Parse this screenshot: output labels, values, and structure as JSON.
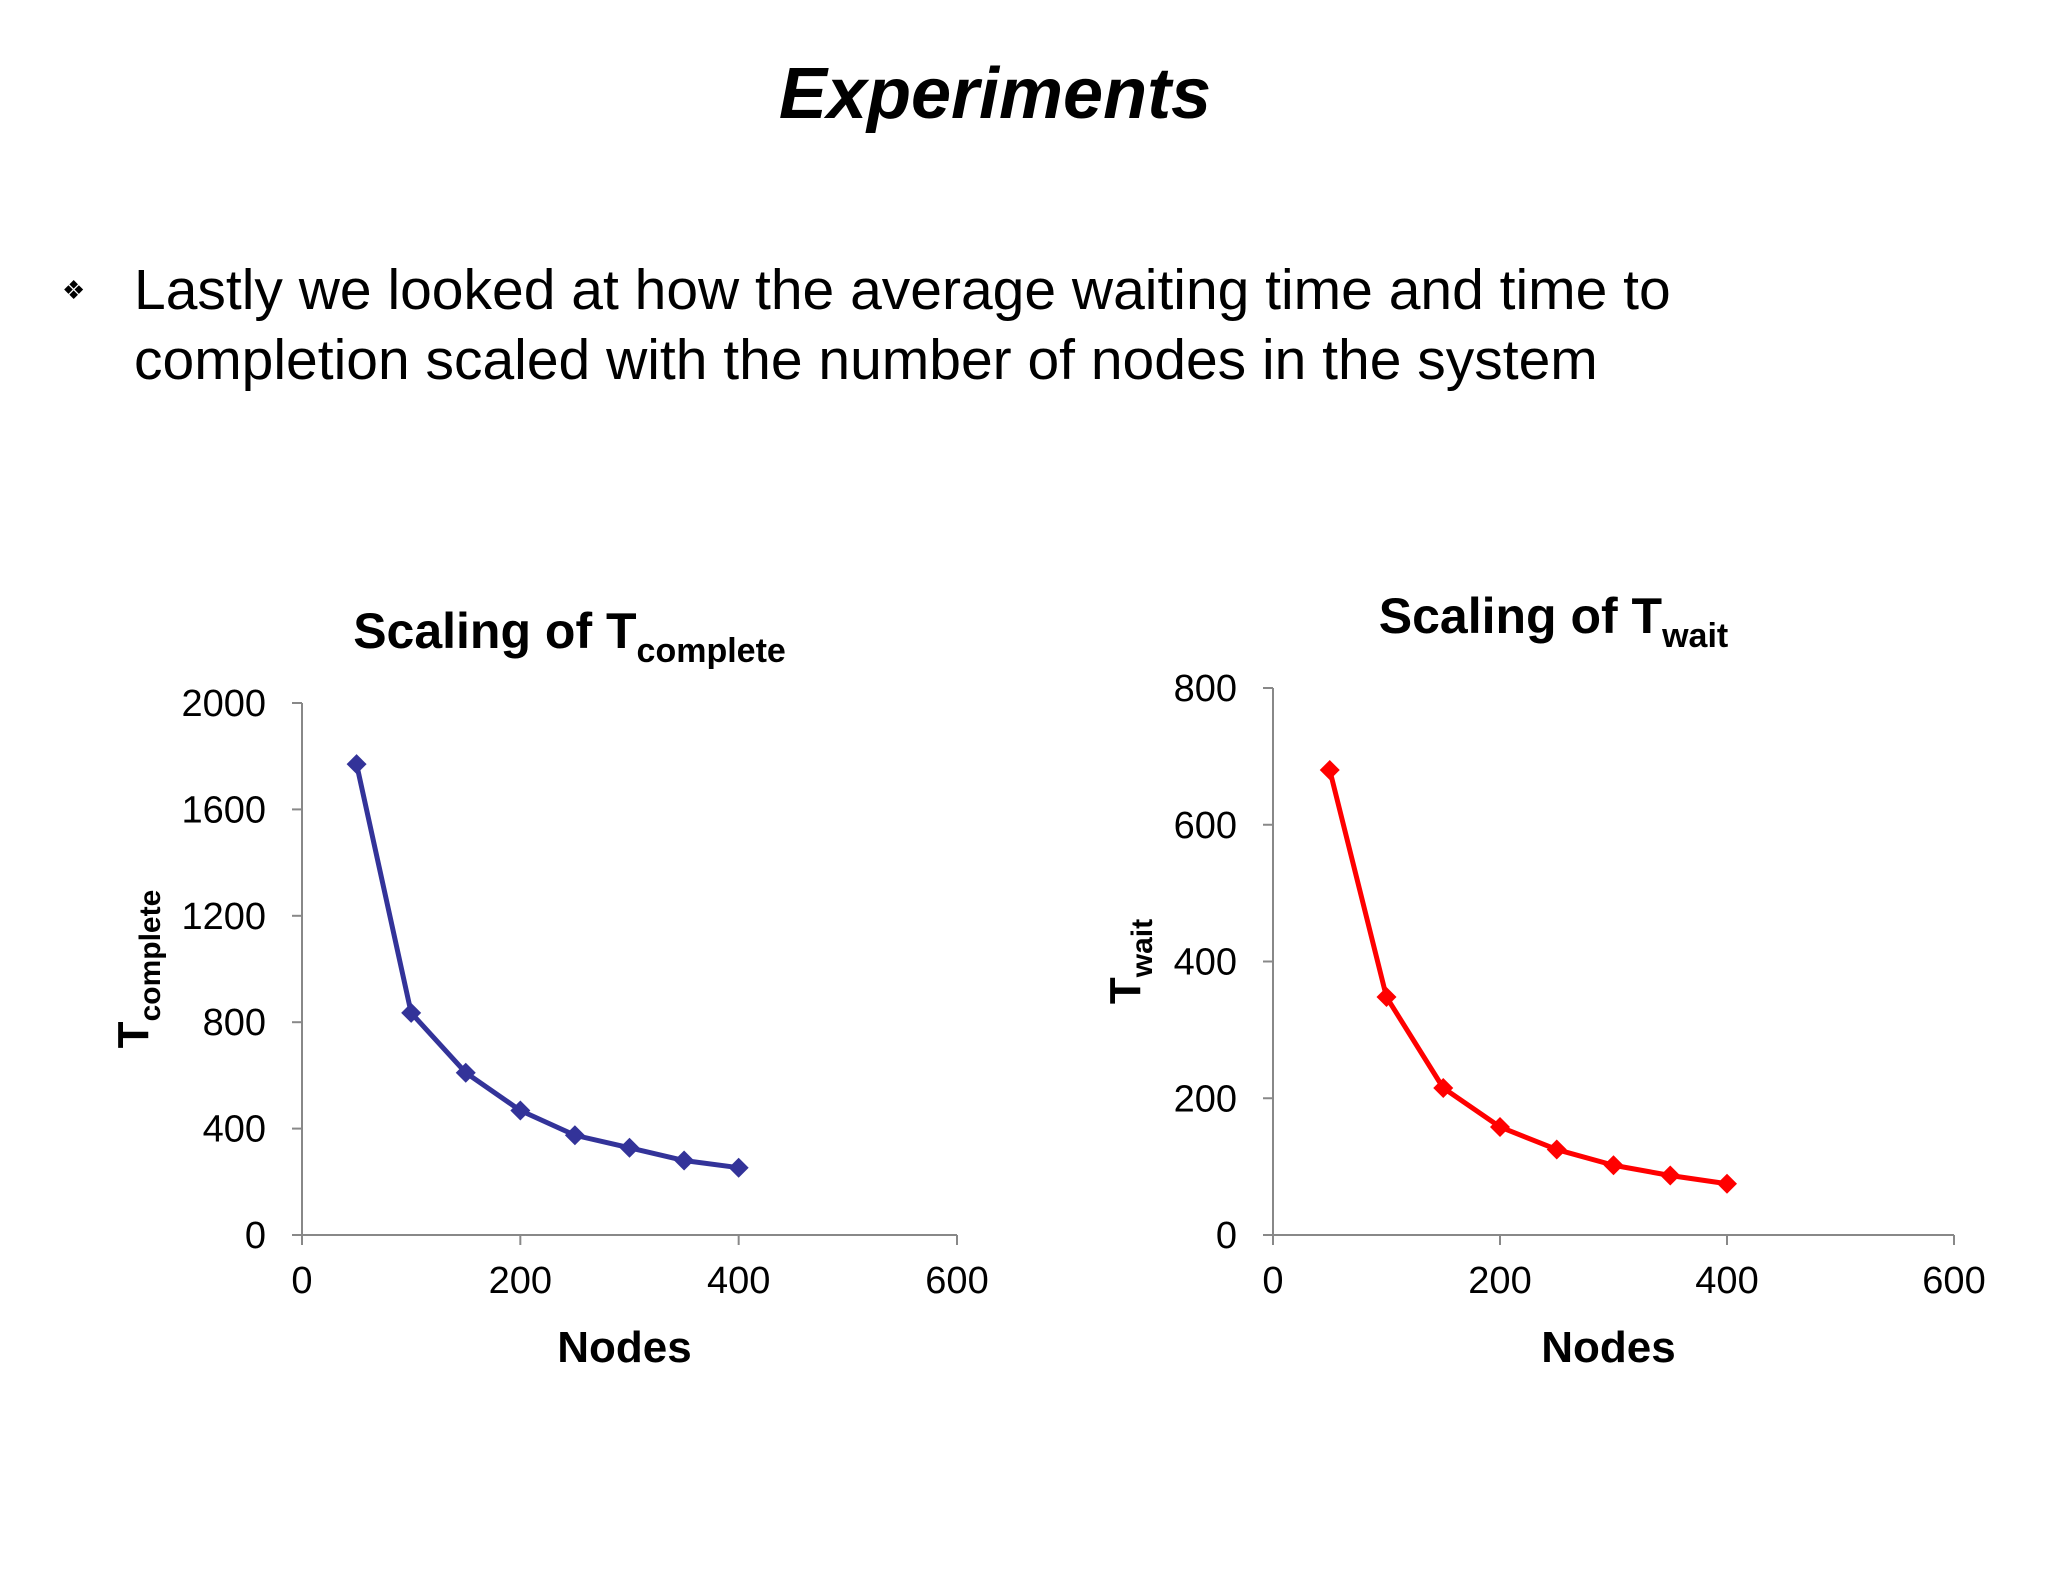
{
  "slide": {
    "title": "Experiments",
    "bullet_glyph": "❖",
    "bullet_text": "Lastly we looked at how the average waiting time and time to completion scaled with the number of nodes in the system"
  },
  "chart_data": [
    {
      "type": "line",
      "title": "Scaling of T",
      "title_sub": "complete",
      "xlabel": "Nodes",
      "ylabel": "T",
      "ylabel_sub": "complete",
      "x": [
        50,
        100,
        150,
        200,
        250,
        300,
        350,
        400
      ],
      "series": [
        {
          "name": "Tcomplete",
          "color": "#333399",
          "values": [
            1770,
            835,
            610,
            468,
            375,
            328,
            280,
            253
          ]
        }
      ],
      "xlim": [
        0,
        600
      ],
      "ylim": [
        0,
        2000
      ],
      "xticks": [
        0,
        200,
        400,
        600
      ],
      "yticks": [
        0,
        400,
        800,
        1200,
        1600,
        2000
      ],
      "marker": "diamond",
      "grid": false,
      "legend": "none"
    },
    {
      "type": "line",
      "title": "Scaling of T",
      "title_sub": "wait",
      "xlabel": "Nodes",
      "ylabel": "T",
      "ylabel_sub": "wait",
      "x": [
        50,
        100,
        150,
        200,
        250,
        300,
        350,
        400
      ],
      "series": [
        {
          "name": "Twait",
          "color": "#ff0000",
          "values": [
            680,
            348,
            215,
            158,
            125,
            102,
            87,
            75
          ]
        }
      ],
      "xlim": [
        0,
        600
      ],
      "ylim": [
        0,
        800
      ],
      "xticks": [
        0,
        200,
        400,
        600
      ],
      "yticks": [
        0,
        200,
        400,
        600,
        800
      ],
      "marker": "diamond",
      "grid": false,
      "legend": "none"
    }
  ]
}
